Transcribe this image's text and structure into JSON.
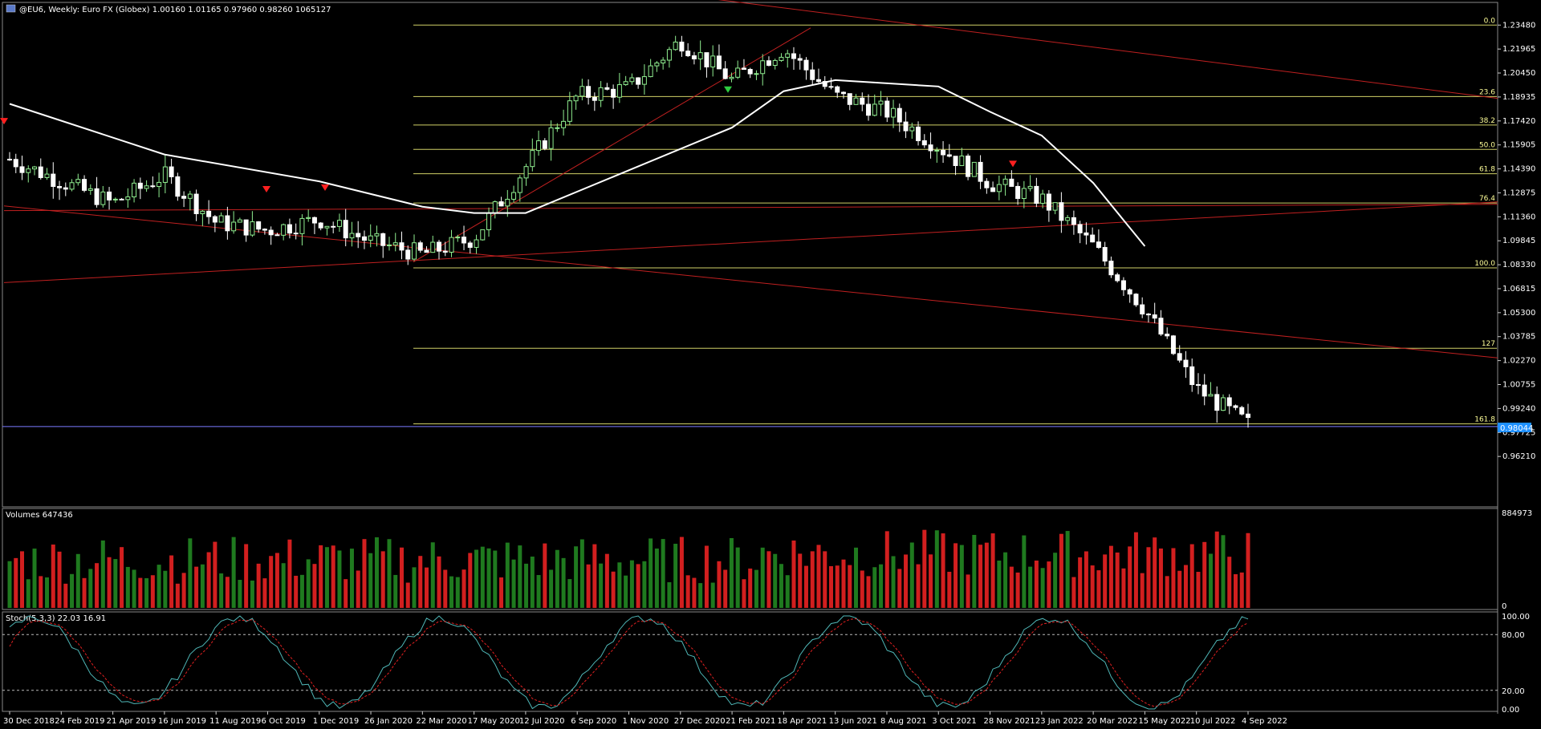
{
  "header": {
    "symbol_title": "@EU6, Weekly:  Euro FX (Globex)  1.00160  1.01165  0.97960  0.98260  1065127"
  },
  "colors": {
    "background": "#000000",
    "bull": "#90ee90",
    "bear": "#ffffff",
    "ma": "#ffffff",
    "fib": "#f5f57a",
    "trend": "#c02020",
    "vol_up": "#1f7a1f",
    "vol_down": "#d21f1f",
    "stoch_main": "#4fb7b7",
    "stoch_signal": "#e02020",
    "price_tag": "#1e90ff"
  },
  "price_axis": {
    "ticks": [
      "1.23480",
      "1.21965",
      "1.20450",
      "1.18935",
      "1.17420",
      "1.15905",
      "1.14390",
      "1.12875",
      "1.11360",
      "1.09845",
      "1.08330",
      "1.06815",
      "1.05300",
      "1.03785",
      "1.02270",
      "1.00755",
      "0.99240",
      "0.97725",
      "0.96210"
    ],
    "current_price": "0.98044",
    "range": [
      0.952,
      1.245
    ]
  },
  "time_axis": {
    "labels": [
      "30 Dec 2018",
      "24 Feb 2019",
      "21 Apr 2019",
      "16 Jun 2019",
      "11 Aug 2019",
      "6 Oct 2019",
      "1 Dec 2019",
      "26 Jan 2020",
      "22 Mar 2020",
      "17 May 2020",
      "12 Jul 2020",
      "6 Sep 2020",
      "1 Nov 2020",
      "27 Dec 2020",
      "21 Feb 2021",
      "18 Apr 2021",
      "13 Jun 2021",
      "8 Aug 2021",
      "3 Oct 2021",
      "28 Nov 2021",
      "23 Jan 2022",
      "20 Mar 2022",
      "15 May 2022",
      "10 Jul 2022",
      "4 Sep 2022"
    ]
  },
  "fibonacci": {
    "levels": [
      {
        "label": "0.0",
        "price": 1.2348
      },
      {
        "label": "23.6",
        "price": 1.1896
      },
      {
        "label": "38.2",
        "price": 1.1716
      },
      {
        "label": "50.0",
        "price": 1.1562
      },
      {
        "label": "61.8",
        "price": 1.1408
      },
      {
        "label": "76.4",
        "price": 1.1223
      },
      {
        "label": "100.0",
        "price": 1.0813
      },
      {
        "label": "127",
        "price": 1.0305
      },
      {
        "label": "161.8",
        "price": 0.9827
      }
    ]
  },
  "volume_panel": {
    "label": "Volumes 647436",
    "max_tick": "884973",
    "min_tick": "0"
  },
  "stoch_panel": {
    "label": "Stoch(5,3,3) 22.03 16.91",
    "ticks": [
      "100.00",
      "80.00",
      "20.00",
      "0.00"
    ]
  },
  "chart_data": {
    "type": "candlestick",
    "title": "@EU6, Weekly:  Euro FX (Globex)",
    "interval": "weekly",
    "last_ohlc": {
      "open": 1.0016,
      "high": 1.01165,
      "low": 0.9796,
      "close": 0.9826,
      "volume": 1065127
    },
    "current_price": 0.98044,
    "ylim": [
      0.952,
      1.245
    ],
    "x_labels": [
      "30 Dec 2018",
      "24 Feb 2019",
      "21 Apr 2019",
      "16 Jun 2019",
      "11 Aug 2019",
      "6 Oct 2019",
      "1 Dec 2019",
      "26 Jan 2020",
      "22 Mar 2020",
      "17 May 2020",
      "12 Jul 2020",
      "6 Sep 2020",
      "1 Nov 2020",
      "27 Dec 2020",
      "21 Feb 2021",
      "18 Apr 2021",
      "13 Jun 2021",
      "8 Aug 2021",
      "3 Oct 2021",
      "28 Nov 2021",
      "23 Jan 2022",
      "20 Mar 2022",
      "15 May 2022",
      "10 Jul2022",
      "4 Sep 2022"
    ],
    "close_path": [
      {
        "x": "30 Dec 2018",
        "close": 1.15
      },
      {
        "x": "24 Feb 2019",
        "close": 1.136
      },
      {
        "x": "21 Apr 2019",
        "close": 1.122
      },
      {
        "x": "16 Jun 2019",
        "close": 1.14
      },
      {
        "x": "11 Aug 2019",
        "close": 1.11
      },
      {
        "x": "6 Oct 2019",
        "close": 1.105
      },
      {
        "x": "1 Dec 2019",
        "close": 1.112
      },
      {
        "x": "26 Jan 2020",
        "close": 1.098
      },
      {
        "x": "22 Mar 2020",
        "close": 1.09
      },
      {
        "x": "17 May 2020",
        "close": 1.1
      },
      {
        "x": "12 Jul 2020",
        "close": 1.145
      },
      {
        "x": "6 Sep 2020",
        "close": 1.19
      },
      {
        "x": "1 Nov 2020",
        "close": 1.195
      },
      {
        "x": "27 Dec 2020",
        "close": 1.225
      },
      {
        "x": "21 Feb 2021",
        "close": 1.2
      },
      {
        "x": "18 Apr 2021",
        "close": 1.22
      },
      {
        "x": "13 Jun 2021",
        "close": 1.19
      },
      {
        "x": "8 Aug 2021",
        "close": 1.18
      },
      {
        "x": "3 Oct 2021",
        "close": 1.158
      },
      {
        "x": "28 Nov 2021",
        "close": 1.135
      },
      {
        "x": "23 Jan 2022",
        "close": 1.125
      },
      {
        "x": "20 Mar 2022",
        "close": 1.095
      },
      {
        "x": "15 May 2022",
        "close": 1.055
      },
      {
        "x": "10 Jul 2022",
        "close": 1.005
      },
      {
        "x": "4 Sep 2022",
        "close": 0.9826
      }
    ],
    "moving_average": [
      {
        "x": "30 Dec 2018",
        "value": 1.185
      },
      {
        "x": "16 Jun 2019",
        "value": 1.153
      },
      {
        "x": "1 Dec 2019",
        "value": 1.136
      },
      {
        "x": "22 Mar 2020",
        "value": 1.12
      },
      {
        "x": "17 May 2020",
        "value": 1.116
      },
      {
        "x": "12 Jul 2020",
        "value": 1.116
      },
      {
        "x": "1 Nov 2020",
        "value": 1.143
      },
      {
        "x": "21 Feb 2021",
        "value": 1.17
      },
      {
        "x": "18 Apr 2021",
        "value": 1.193
      },
      {
        "x": "13 Jun 2021",
        "value": 1.2
      },
      {
        "x": "3 Oct 2021",
        "value": 1.196
      },
      {
        "x": "28 Nov 2021",
        "value": 1.18
      },
      {
        "x": "23 Jan 2022",
        "value": 1.165
      },
      {
        "x": "20 Mar 2022",
        "value": 1.135
      },
      {
        "x": "15 May 2022",
        "value": 1.095
      }
    ],
    "stochastic_last": {
      "k": 22.03,
      "d": 16.91
    }
  }
}
